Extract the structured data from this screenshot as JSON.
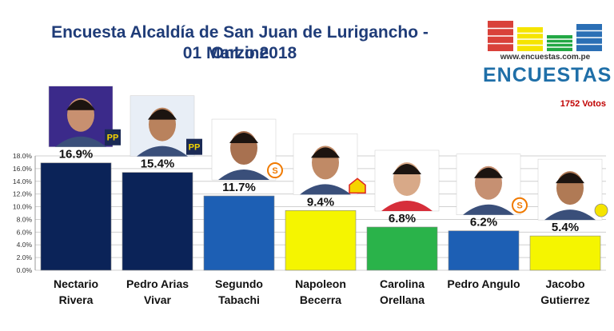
{
  "header": {
    "title_line1": "Encuesta Alcaldía de San Juan de Lurigancho - OnLine",
    "title_line2": "01 Marzo 2018"
  },
  "logo": {
    "url": "www.encuestas.com.pe",
    "brand": "ENCUESTAS",
    "colors": [
      "#d9413a",
      "#f5e400",
      "#22a844",
      "#2b6fb5"
    ]
  },
  "votes_label": "1752 Votos",
  "chart_data": {
    "type": "bar",
    "categories": [
      [
        "Nectario",
        "Rivera"
      ],
      [
        "Pedro Arias",
        "Vivar"
      ],
      [
        "Segundo",
        "Tabachi"
      ],
      [
        "Napoleon",
        "Becerra"
      ],
      [
        "Carolina",
        "Orellana"
      ],
      [
        "Pedro Angulo"
      ],
      [
        "Jacobo",
        "Gutierrez"
      ]
    ],
    "values": [
      16.9,
      15.4,
      11.7,
      9.4,
      6.8,
      6.2,
      5.4
    ],
    "value_labels": [
      "16.9%",
      "15.4%",
      "11.7%",
      "9.4%",
      "6.8%",
      "6.2%",
      "5.4%"
    ],
    "bar_colors": [
      "#0b2358",
      "#0b2358",
      "#1d5fb4",
      "#f5f500",
      "#2ab34a",
      "#1d5fb4",
      "#f5f500"
    ],
    "ylim": [
      0,
      18
    ],
    "yticks": [
      "0.0%",
      "2.0%",
      "4.0%",
      "6.0%",
      "8.0%",
      "10.0%",
      "12.0%",
      "14.0%",
      "16.0%",
      "18.0%"
    ],
    "grid": true,
    "xlabel": "",
    "ylabel": ""
  },
  "badges": [
    {
      "icon": "podemos-logo-icon",
      "text": "PP"
    },
    {
      "icon": "podemos-logo-icon",
      "text": "PP"
    },
    {
      "icon": "solidaridad-logo-icon",
      "text": "S"
    },
    {
      "icon": "house-logo-icon",
      "text": ""
    },
    {
      "icon": "",
      "text": ""
    },
    {
      "icon": "solidaridad-logo-icon",
      "text": "S"
    },
    {
      "icon": "sun-logo-icon",
      "text": ""
    }
  ]
}
